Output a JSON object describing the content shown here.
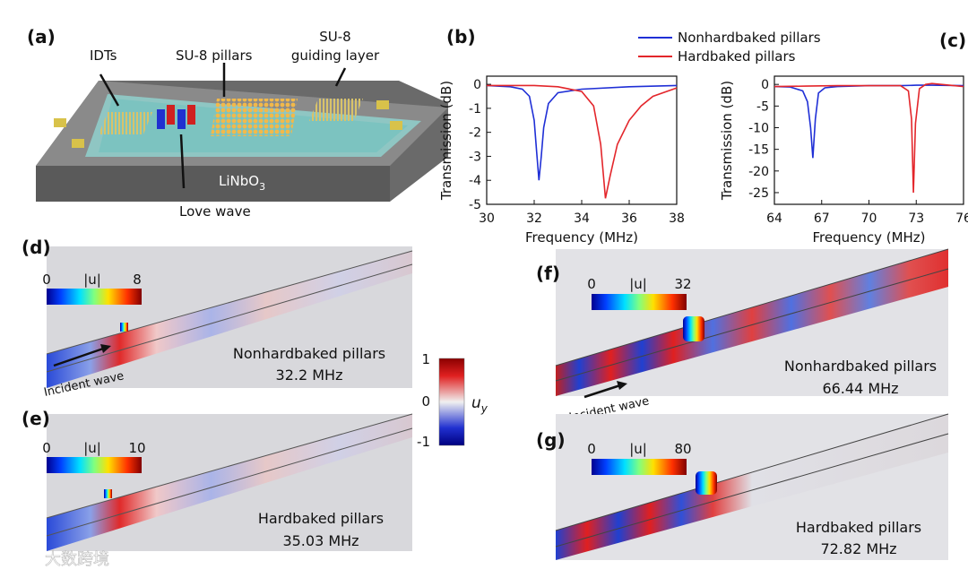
{
  "chart_data": [
    {
      "type": "line",
      "label": "(b)",
      "ylabel": "Transmission (dB)",
      "xlabel": "Frequency (MHz)",
      "xlim": [
        30,
        38
      ],
      "xticks": [
        30,
        32,
        34,
        36,
        38
      ],
      "ylim": [
        -5,
        0.34
      ],
      "yticks": [
        -5,
        -4,
        -3,
        -2,
        -1,
        0
      ],
      "series": [
        {
          "name": "Nonhardbaked pillars",
          "color": "#1f2fd6",
          "x": [
            30,
            31,
            31.5,
            31.8,
            32.0,
            32.1,
            32.2,
            32.3,
            32.4,
            32.6,
            33,
            34,
            36,
            38
          ],
          "values": [
            -0.05,
            -0.1,
            -0.2,
            -0.5,
            -1.5,
            -2.8,
            -4.0,
            -3.0,
            -1.8,
            -0.8,
            -0.35,
            -0.2,
            -0.1,
            -0.05
          ]
        },
        {
          "name": "Hardbaked pillars",
          "color": "#e3262b",
          "x": [
            30,
            32,
            33,
            34,
            34.5,
            34.8,
            35.0,
            35.2,
            35.5,
            36,
            36.5,
            37,
            38
          ],
          "values": [
            -0.05,
            -0.05,
            -0.1,
            -0.3,
            -0.9,
            -2.5,
            -4.75,
            -3.8,
            -2.5,
            -1.5,
            -0.9,
            -0.5,
            -0.15
          ]
        }
      ]
    },
    {
      "type": "line",
      "label": "(c)",
      "ylabel": "Transmission (dB)",
      "xlabel": "Frequency (MHz)",
      "xlim": [
        64,
        76
      ],
      "xticks": [
        64,
        67,
        70,
        73,
        76
      ],
      "ylim": [
        -27.7,
        1.9
      ],
      "yticks": [
        -25,
        -20,
        -15,
        -10,
        -5,
        0
      ],
      "series": [
        {
          "color": "#1f2fd6",
          "x": [
            64,
            65,
            65.8,
            66.1,
            66.3,
            66.44,
            66.6,
            66.8,
            67.2,
            68,
            70,
            72,
            73,
            74,
            76
          ],
          "values": [
            -0.5,
            -0.6,
            -1.5,
            -4,
            -10,
            -17,
            -8,
            -2,
            -0.8,
            -0.5,
            -0.3,
            -0.3,
            -0.2,
            -0.2,
            -0.3
          ]
        },
        {
          "color": "#e3262b",
          "x": [
            64,
            66,
            68,
            70,
            72,
            72.5,
            72.7,
            72.82,
            72.95,
            73.2,
            73.6,
            74,
            76
          ],
          "values": [
            -0.5,
            -0.4,
            -0.3,
            -0.3,
            -0.3,
            -1.5,
            -8,
            -25,
            -9,
            -1,
            0,
            0.2,
            -0.5
          ]
        }
      ]
    }
  ],
  "figure": {
    "panel_a": {
      "label": "(a)",
      "idts": "IDTs",
      "pillars": "SU-8 pillars",
      "guiding_layer": [
        "SU-8",
        "guiding layer"
      ],
      "substrate": "LiNbO",
      "substrate_sub": "3",
      "wave": "Love wave"
    },
    "panel_d": {
      "label": "(d)",
      "colorbar": {
        "min": 0,
        "title": "|u|",
        "max": 8
      },
      "caption": [
        "Nonhardbaked pillars",
        "32.2 MHz"
      ],
      "arrow": "Incident wave"
    },
    "panel_e": {
      "label": "(e)",
      "colorbar": {
        "min": 0,
        "title": "|u|",
        "max": 10
      },
      "caption": [
        "Hardbaked pillars",
        "35.03 MHz"
      ]
    },
    "panel_f": {
      "label": "(f)",
      "colorbar": {
        "min": 0,
        "title": "|u|",
        "max": 32
      },
      "caption": [
        "Nonhardbaked pillars",
        "66.44 MHz"
      ],
      "arrow": "Incident wave"
    },
    "panel_g": {
      "label": "(g)",
      "colorbar": {
        "min": 0,
        "title": "|u|",
        "max": 80
      },
      "caption": [
        "Hardbaked pillars",
        "72.82 MHz"
      ]
    },
    "uy_colorbar": {
      "max": 1,
      "mid": 0,
      "min": -1,
      "symbol": "u",
      "sub": "y"
    },
    "watermark": "大数跨境"
  }
}
